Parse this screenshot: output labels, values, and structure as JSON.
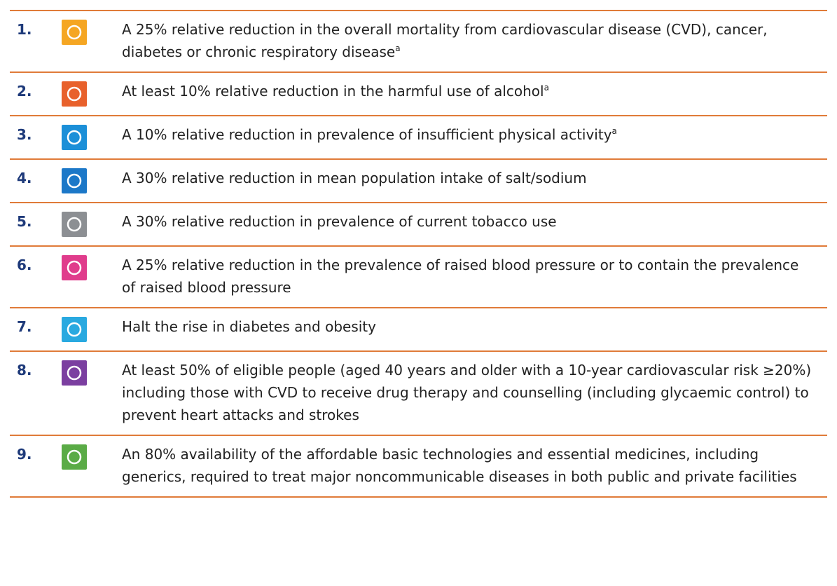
{
  "items": [
    {
      "number": "1.",
      "text": "A 25% relative reduction in the overall mortality from cardiovascular disease (CVD), cancer, diabetes or chronic respiratory disease",
      "note": "a",
      "color": "#f5a623"
    },
    {
      "number": "2.",
      "text": "At least 10% relative reduction in the harmful use of alcohol",
      "note": "a",
      "color": "#e8612c"
    },
    {
      "number": "3.",
      "text": "A 10% relative reduction in prevalence of insufficient physical activity",
      "note": "a",
      "color": "#1b8fd8"
    },
    {
      "number": "4.",
      "text": "A 30% relative reduction in mean population intake of salt/sodium",
      "color": "#1c78c8"
    },
    {
      "number": "5.",
      "text": "A 30% relative reduction in prevalence of current tobacco use",
      "color": "#8c8f93"
    },
    {
      "number": "6.",
      "text": "A 25% relative reduction in the prevalence of raised blood pressure or to contain the prevalence of raised blood pressure",
      "color": "#e03c8c"
    },
    {
      "number": "7.",
      "text": "Halt the rise in diabetes and obesity",
      "color": "#29a9e0"
    },
    {
      "number": "8.",
      "text": "At least 50% of eligible people (aged 40 years and older with a 10-year cardiovascular risk ≥20%) including those with CVD to receive drug therapy and counselling (including glycaemic control) to prevent heart attacks and strokes",
      "color": "#7b3fa0"
    },
    {
      "number": "9.",
      "text": "An 80% availability of the affordable basic technologies and essential medicines, including generics, required to treat major noncommunicable diseases in both public and private facilities",
      "color": "#5aab46"
    }
  ]
}
